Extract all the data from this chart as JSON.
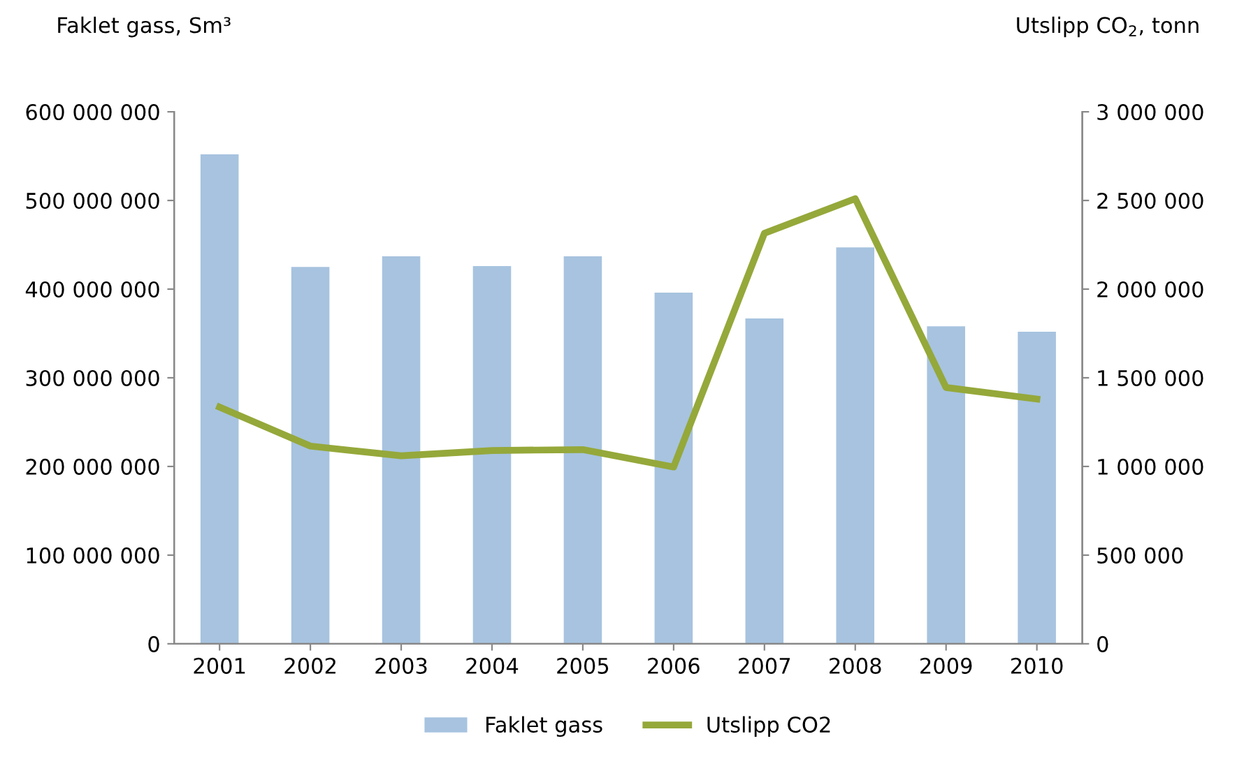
{
  "chart_data": {
    "type": "bar",
    "ylabel": "Faklet gass, Sm³",
    "y2label": "Utslipp CO$_{2}$, tonn",
    "categories": [
      "2001",
      "2002",
      "2003",
      "2004",
      "2005",
      "2006",
      "2007",
      "2008",
      "2009",
      "2010"
    ],
    "series": [
      {
        "name": "Faklet gass",
        "color": "#a7c3df",
        "values": [
          552000000,
          425000000,
          437000000,
          426000000,
          437000000,
          396000000,
          367000000,
          447000000,
          358000000,
          352000000
        ]
      },
      {
        "name": "Utslipp CO2",
        "type": "line",
        "axis": "y2",
        "color": "#95a83a",
        "values": [
          1335000,
          1115000,
          1060000,
          1090000,
          1095000,
          997000,
          2315000,
          2510000,
          1445000,
          1380000
        ]
      }
    ],
    "ylim": [
      0,
      600000000
    ],
    "yticks": [
      {
        "value": 0,
        "label": "0"
      },
      {
        "value": 100000000,
        "label": "100 000 000"
      },
      {
        "value": 200000000,
        "label": "200 000 000"
      },
      {
        "value": 300000000,
        "label": "300 000 000"
      },
      {
        "value": 400000000,
        "label": "400 000 000"
      },
      {
        "value": 500000000,
        "label": "500 000 000"
      },
      {
        "value": 600000000,
        "label": "600 000 000"
      }
    ],
    "y2lim": [
      0,
      3000000
    ],
    "y2ticks": [
      {
        "value": 0,
        "label": "0"
      },
      {
        "value": 500000,
        "label": "500 000"
      },
      {
        "value": 1000000,
        "label": "1 000 000"
      },
      {
        "value": 1500000,
        "label": "1 500 000"
      },
      {
        "value": 2000000,
        "label": "2 000 000"
      },
      {
        "value": 2500000,
        "label": "2 500 000"
      },
      {
        "value": 3000000,
        "label": "3 000 000"
      }
    ],
    "legend": "bottom",
    "grid": false,
    "marker": "none",
    "line_style": "solid"
  }
}
